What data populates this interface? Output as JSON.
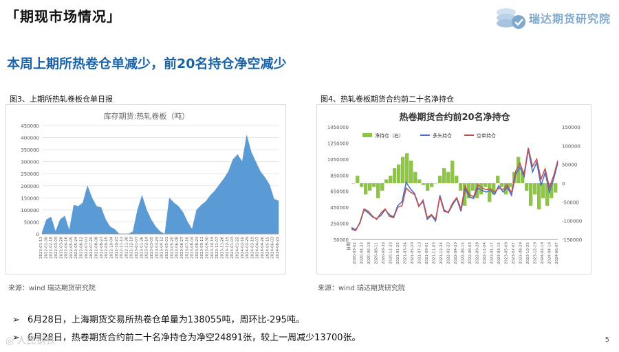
{
  "header": {
    "section_title": "「期现市场情况」",
    "brand": "瑞达期货研究院",
    "brand_color": "#7fa8cf"
  },
  "headline": "本周上期所热卷仓单减少，前20名持仓净空减少",
  "figures": {
    "left": {
      "label": "图3、上期所热轧卷板仓单日报",
      "source": "来源：wind  瑞达期货研究院"
    },
    "right": {
      "label": "图4、热轧卷板期货合约前二十名净持仓",
      "source": "来源：wind  瑞达期货研究院"
    }
  },
  "chart_data": [
    {
      "type": "area",
      "title": "库存期货:热轧卷板（吨）",
      "ylim": [
        0,
        450000
      ],
      "yticks": [
        "0",
        "50000",
        "100000",
        "150000",
        "200000",
        "250000",
        "300000",
        "350000",
        "400000",
        "450000"
      ],
      "xticks": [
        "2022-01-11",
        "2022-01-30",
        "2022-02-18",
        "2022-03-09",
        "2022-03-28",
        "2022-04-16",
        "2022-05-05",
        "2022-05-24",
        "2022-06-12",
        "2022-07-01",
        "2022-07-20",
        "2022-08-08",
        "2022-08-27",
        "2022-09-15",
        "2022-10-04",
        "2022-10-23",
        "2022-11-11",
        "2022-11-30",
        "2022-12-19",
        "2023-01-07",
        "2023-01-26",
        "2023-02-14",
        "2023-03-05",
        "2023-03-24",
        "2023-04-12",
        "2023-05-01",
        "2023-05-20",
        "2023-06-08",
        "2023-06-27",
        "2023-07-16",
        "2023-08-04",
        "2023-08-23",
        "2023-09-11",
        "2023-09-30",
        "2023-10-19",
        "2023-11-07",
        "2023-11-26",
        "2023-12-15",
        "2024-01-03",
        "2024-01-22",
        "2024-02-10",
        "2024-02-29",
        "2024-03-19",
        "2024-04-07",
        "2024-04-26",
        "2024-05-15",
        "2024-06-03",
        "2024-06-22"
      ],
      "series": [
        {
          "name": "库存期货:热轧卷板",
          "color": "#5b9bd5",
          "values": [
            5000,
            60000,
            70000,
            10000,
            60000,
            75000,
            15000,
            120000,
            115000,
            130000,
            200000,
            150000,
            115000,
            110000,
            60000,
            30000,
            20000,
            0,
            0,
            0,
            10000,
            100000,
            160000,
            100000,
            60000,
            30000,
            10000,
            0,
            150000,
            130000,
            115000,
            90000,
            50000,
            20000,
            100000,
            120000,
            135000,
            160000,
            180000,
            205000,
            230000,
            260000,
            310000,
            330000,
            300000,
            410000,
            340000,
            300000,
            260000,
            235000,
            205000,
            145000,
            138055
          ]
        }
      ]
    },
    {
      "type": "line",
      "title": "热卷期货合约前20名净持仓",
      "ylim_left": [
        50000,
        1450000
      ],
      "ylim_right": [
        -150000,
        150000
      ],
      "yticks_left": [
        "50000",
        "250000",
        "450000",
        "650000",
        "850000",
        "1050000",
        "1250000",
        "1450000"
      ],
      "yticks_right": [
        "-150000",
        "-100000",
        "-50000",
        "0",
        "50000",
        "100000",
        "150000"
      ],
      "xticks": [
        "2020-03-02",
        "2020-04-23",
        "2020-06-18",
        "2020-08-11",
        "2020-09-30",
        "2020-11-23",
        "2021-01-25",
        "2021-03-24",
        "2021-05-20",
        "2021-07-13",
        "2021-09-01",
        "2021-11-03",
        "2021-12-24",
        "2022-02-23",
        "2022-04-20",
        "2022-06-15",
        "2022-08-03",
        "2022-09-28",
        "2022-11-24",
        "2023-01-17",
        "2023-03-15",
        "2023-05-09",
        "2023-07-07",
        "2023-08-29",
        "2023-10-25",
        "2023-12-19",
        "2024-02-19",
        "2024-04-19",
        "2024-06-07"
      ],
      "date_label": "日期",
      "legend": [
        "净持仓（右）",
        "多头持仓",
        "空单持仓"
      ],
      "series": [
        {
          "name": "净持仓（右）",
          "color": "#8dc63f",
          "axis": "right",
          "values": [
            0,
            20000,
            -10000,
            -30000,
            -20000,
            -10000,
            -40000,
            -20000,
            10000,
            20000,
            40000,
            50000,
            70000,
            80000,
            60000,
            30000,
            10000,
            -5000,
            -20000,
            -10000,
            0,
            20000,
            40000,
            30000,
            60000,
            20000,
            -20000,
            -60000,
            -40000,
            -20000,
            -40000,
            -30000,
            -10000,
            -50000,
            -30000,
            20000,
            -10000,
            -30000,
            -10000,
            30000,
            70000,
            30000,
            -20000,
            -60000,
            -30000,
            -70000,
            -40000,
            -60000,
            -40000,
            -24891
          ]
        },
        {
          "name": "多头持仓",
          "color": "#4472c4",
          "axis": "left",
          "values": [
            200000,
            170000,
            250000,
            420000,
            380000,
            330000,
            310000,
            350000,
            420000,
            360000,
            330000,
            470000,
            520000,
            760000,
            680000,
            620000,
            470000,
            520000,
            300000,
            350000,
            280000,
            600000,
            420000,
            380000,
            480000,
            560000,
            400000,
            680000,
            580000,
            560000,
            690000,
            660000,
            640000,
            660000,
            610000,
            720000,
            640000,
            700000,
            600000,
            860000,
            950000,
            830000,
            1170000,
            890000,
            1010000,
            720000,
            880000,
            640000,
            800000,
            1000000
          ]
        },
        {
          "name": "空单持仓",
          "color": "#c0504d",
          "axis": "left",
          "values": [
            180000,
            160000,
            260000,
            430000,
            400000,
            340000,
            300000,
            380000,
            430000,
            340000,
            320000,
            450000,
            470000,
            690000,
            640000,
            610000,
            460000,
            540000,
            320000,
            360000,
            300000,
            580000,
            400000,
            390000,
            500000,
            570000,
            430000,
            710000,
            610000,
            580000,
            730000,
            690000,
            670000,
            680000,
            640000,
            690000,
            670000,
            730000,
            630000,
            900000,
            1000000,
            860000,
            1190000,
            960000,
            1050000,
            800000,
            930000,
            700000,
            840000,
            1030000
          ]
        }
      ]
    }
  ],
  "bullets": [
    {
      "arrow": "➢",
      "text": "6月28日，上海期货交易所热卷仓单量为138055吨，周环比-295吨。"
    },
    {
      "arrow": "➢",
      "text": "6月28日，热卷期货合约前二十名净持仓为净空24891张，较上一周减少13700张。"
    }
  ],
  "page_number": "5",
  "watermark": "◎ 人民钢铁"
}
